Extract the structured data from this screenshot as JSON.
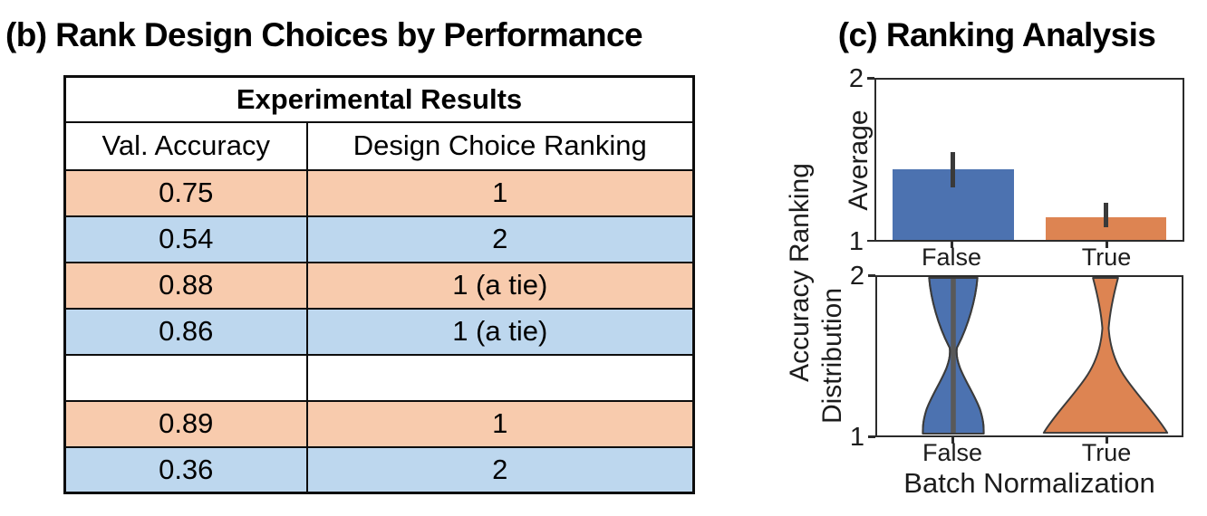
{
  "panel_b": {
    "title": "(b) Rank Design Choices by Performance",
    "table": {
      "title": "Experimental Results",
      "columns": [
        "Val. Accuracy",
        "Design Choice Ranking"
      ],
      "rows": [
        {
          "val_accuracy": "0.75",
          "ranking": "1",
          "row_color": "orange"
        },
        {
          "val_accuracy": "0.54",
          "ranking": "2",
          "row_color": "blue"
        },
        {
          "val_accuracy": "0.88",
          "ranking": "1 (a tie)",
          "row_color": "orange"
        },
        {
          "val_accuracy": "0.86",
          "ranking": "1 (a tie)",
          "row_color": "blue"
        },
        {
          "val_accuracy": "",
          "ranking": "",
          "row_color": "white"
        },
        {
          "val_accuracy": "0.89",
          "ranking": "1",
          "row_color": "orange"
        },
        {
          "val_accuracy": "0.36",
          "ranking": "2",
          "row_color": "blue"
        }
      ]
    }
  },
  "panel_c": {
    "title": "(c) Ranking Analysis",
    "shared_ylabel": "Accuracy Ranking",
    "xlabel": "Batch Normalization",
    "bar_subplot": {
      "ylabel": "Average",
      "yticks": [
        "2",
        "1"
      ],
      "xticks": [
        "False",
        "True"
      ]
    },
    "violin_subplot": {
      "ylabel": "Distribution",
      "yticks": [
        "2",
        "1"
      ],
      "xticks": [
        "False",
        "True"
      ]
    }
  },
  "colors": {
    "bar_false": "#4C72B0",
    "bar_true": "#DD8452",
    "table_row_orange": "#F8CBAD",
    "table_row_blue": "#BDD7EE",
    "error_bar": "#3A3A3A",
    "violin_inner_bar": "#595959",
    "axis": "#2B2B2B"
  },
  "chart_data": [
    {
      "type": "bar",
      "title": "(c) Ranking Analysis",
      "categories": [
        "False",
        "True"
      ],
      "values": [
        1.44,
        1.14
      ],
      "error_bars": [
        [
          1.33,
          1.55
        ],
        [
          1.08,
          1.23
        ]
      ],
      "xlabel": "Batch Normalization",
      "ylabel": "Accuracy Ranking Average",
      "ylim": [
        1,
        2
      ],
      "yticks": [
        1,
        2
      ],
      "bar_colors": [
        "#4C72B0",
        "#DD8452"
      ],
      "grid": false,
      "legend": false
    },
    {
      "type": "violin",
      "categories": [
        "False",
        "True"
      ],
      "xlabel": "Batch Normalization",
      "ylabel": "Accuracy Ranking Distribution",
      "ylim": [
        1,
        2
      ],
      "yticks": [
        1,
        2
      ],
      "violin_colors": [
        "#4C72B0",
        "#DD8452"
      ],
      "distributions": [
        {
          "category": "False",
          "shape": "bimodal",
          "modes": [
            1,
            2
          ],
          "note": "mass concentrated at ranks 1 and 2 with a narrow waist near 1.45; dark inner bar spans 1 to 2"
        },
        {
          "category": "True",
          "shape": "right-skewed",
          "modes": [
            1
          ],
          "note": "most mass at rank 1, thin neck upward with a small lobe at rank 2"
        }
      ]
    },
    {
      "type": "table",
      "title": "Experimental Results",
      "columns": [
        "Val. Accuracy",
        "Design Choice Ranking"
      ],
      "rows": [
        [
          "0.75",
          "1"
        ],
        [
          "0.54",
          "2"
        ],
        [
          "0.88",
          "1 (a tie)"
        ],
        [
          "0.86",
          "1 (a tie)"
        ],
        [
          "",
          ""
        ],
        [
          "0.89",
          "1"
        ],
        [
          "0.36",
          "2"
        ]
      ]
    }
  ]
}
